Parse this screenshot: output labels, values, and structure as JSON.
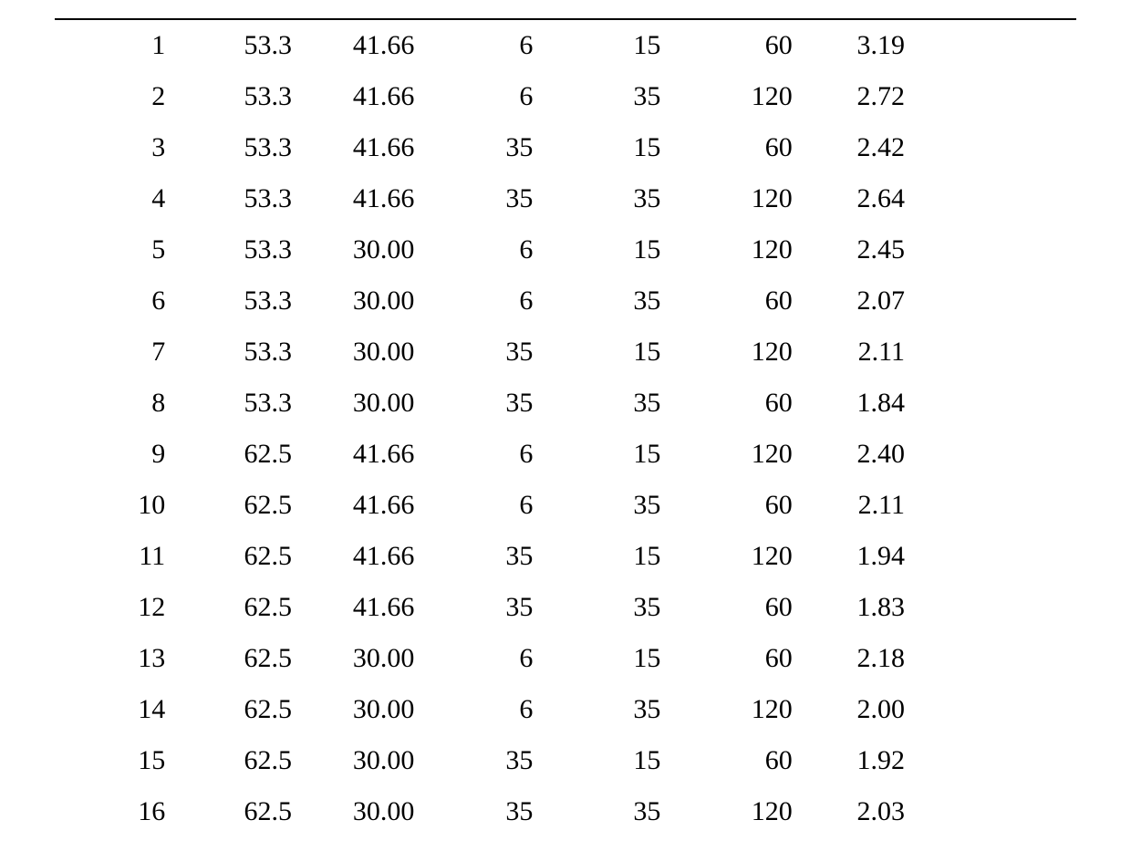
{
  "table": {
    "type": "table",
    "background_color": "#ffffff",
    "text_color": "#000000",
    "border_top_color": "#000000",
    "border_top_width": 2,
    "font_family": "Times New Roman",
    "font_size_pt": 22,
    "columns_count": 7,
    "column_alignments": [
      "right",
      "right",
      "right",
      "right",
      "right",
      "right",
      "right"
    ],
    "column_widths_pct": [
      13.5,
      11.5,
      12,
      12.5,
      12.5,
      12,
      11
    ],
    "rows": [
      [
        "1",
        "53.3",
        "41.66",
        "6",
        "15",
        "60",
        "3.19"
      ],
      [
        "2",
        "53.3",
        "41.66",
        "6",
        "35",
        "120",
        "2.72"
      ],
      [
        "3",
        "53.3",
        "41.66",
        "35",
        "15",
        "60",
        "2.42"
      ],
      [
        "4",
        "53.3",
        "41.66",
        "35",
        "35",
        "120",
        "2.64"
      ],
      [
        "5",
        "53.3",
        "30.00",
        "6",
        "15",
        "120",
        "2.45"
      ],
      [
        "6",
        "53.3",
        "30.00",
        "6",
        "35",
        "60",
        "2.07"
      ],
      [
        "7",
        "53.3",
        "30.00",
        "35",
        "15",
        "120",
        "2.11"
      ],
      [
        "8",
        "53.3",
        "30.00",
        "35",
        "35",
        "60",
        "1.84"
      ],
      [
        "9",
        "62.5",
        "41.66",
        "6",
        "15",
        "120",
        "2.40"
      ],
      [
        "10",
        "62.5",
        "41.66",
        "6",
        "35",
        "60",
        "2.11"
      ],
      [
        "11",
        "62.5",
        "41.66",
        "35",
        "15",
        "120",
        "1.94"
      ],
      [
        "12",
        "62.5",
        "41.66",
        "35",
        "35",
        "60",
        "1.83"
      ],
      [
        "13",
        "62.5",
        "30.00",
        "6",
        "15",
        "60",
        "2.18"
      ],
      [
        "14",
        "62.5",
        "30.00",
        "6",
        "35",
        "120",
        "2.00"
      ],
      [
        "15",
        "62.5",
        "30.00",
        "35",
        "15",
        "60",
        "1.92"
      ],
      [
        "16",
        "62.5",
        "30.00",
        "35",
        "35",
        "120",
        "2.03"
      ]
    ]
  }
}
